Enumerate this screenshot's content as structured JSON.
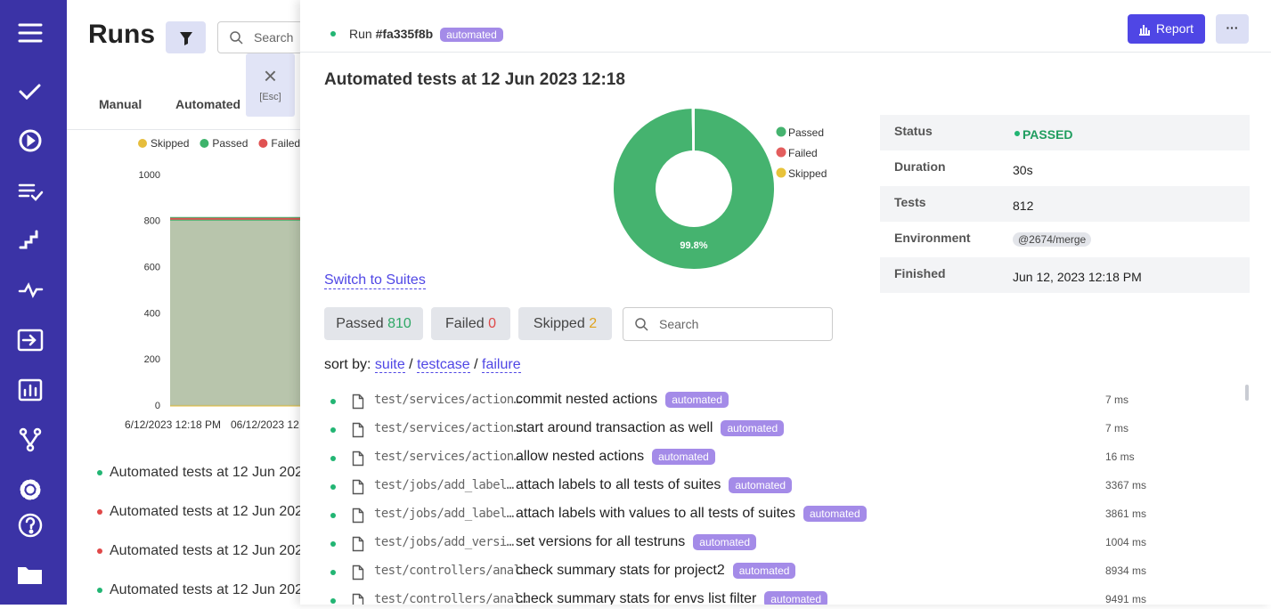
{
  "runs_page": {
    "title": "Runs",
    "search_placeholder": "Search",
    "tabs": [
      "Manual",
      "Automated"
    ],
    "chart": {
      "type": "area",
      "stacked": true,
      "categories": [
        "6/12/2023 12:18 PM",
        "06/12/2023 12"
      ],
      "series": [
        {
          "name": "Skipped",
          "color": "#e6bd3c",
          "values": [
            2,
            2
          ]
        },
        {
          "name": "Passed",
          "color": "#3db36b",
          "values": [
            810,
            810
          ]
        },
        {
          "name": "Failed",
          "color": "#e05252",
          "values": [
            0,
            0
          ]
        }
      ],
      "ylim": [
        0,
        1000
      ],
      "yticks": [
        0,
        200,
        400,
        600,
        800,
        1000
      ]
    },
    "runs": [
      {
        "title": "Automated tests at 12 Jun 202",
        "status": "passed"
      },
      {
        "title": "Automated tests at 12 Jun 202",
        "status": "failed"
      },
      {
        "title": "Automated tests at 12 Jun 202",
        "status": "failed"
      },
      {
        "title": "Automated tests at 12 Jun 202",
        "status": "passed"
      }
    ]
  },
  "close": {
    "icon": "×",
    "hint": "[Esc]"
  },
  "panel": {
    "run_label": "Run",
    "run_id": "#fa335f8b",
    "run_tag": "automated",
    "report_button": "Report",
    "more_button": "···",
    "title": "Automated tests at 12 Jun 2023 12:18",
    "donut": {
      "type": "pie",
      "label": "99.8%",
      "legend": [
        {
          "name": "Passed",
          "color": "#45b36f"
        },
        {
          "name": "Failed",
          "color": "#e35d5d"
        },
        {
          "name": "Skipped",
          "color": "#e8c33a"
        }
      ]
    },
    "details": [
      {
        "label": "Status",
        "value": "PASSED"
      },
      {
        "label": "Duration",
        "value": "30s"
      },
      {
        "label": "Tests",
        "value": 812
      },
      {
        "label": "Environment",
        "value": "@2674/merge"
      },
      {
        "label": "Finished",
        "value": "Jun 12, 2023 12:18 PM"
      }
    ],
    "switch_link": "Switch to Suites",
    "filters": [
      {
        "name": "Passed",
        "count": 810,
        "color": "#2fa866"
      },
      {
        "name": "Failed",
        "count": 0,
        "color": "#e04848"
      },
      {
        "name": "Skipped",
        "count": 2,
        "color": "#e0a21c"
      }
    ],
    "search_placeholder": "Search",
    "sort": {
      "label": "sort by:",
      "options": [
        "suite",
        "testcase",
        "failure"
      ],
      "separator": "/"
    },
    "tests": [
      {
        "file": "test/services/action…",
        "name": "commit nested actions",
        "tag": "automated",
        "duration": "7 ms"
      },
      {
        "file": "test/services/action…",
        "name": "start around transaction as well",
        "tag": "automated",
        "duration": "7 ms"
      },
      {
        "file": "test/services/action…",
        "name": "allow nested actions",
        "tag": "automated",
        "duration": "16 ms"
      },
      {
        "file": "test/jobs/add_label…",
        "name": "attach labels to all tests of suites",
        "tag": "automated",
        "duration": "3367 ms"
      },
      {
        "file": "test/jobs/add_label…",
        "name": "attach labels with values to all tests of suites",
        "tag": "automated",
        "duration": "3861 ms"
      },
      {
        "file": "test/jobs/add_versi…",
        "name": "set versions for all testruns",
        "tag": "automated",
        "duration": "1004 ms"
      },
      {
        "file": "test/controllers/anal…",
        "name": "check summary stats for project2",
        "tag": "automated",
        "duration": "8934 ms"
      },
      {
        "file": "test/controllers/anal…",
        "name": "check summary stats for envs list filter",
        "tag": "automated",
        "duration": "9491 ms"
      }
    ]
  }
}
